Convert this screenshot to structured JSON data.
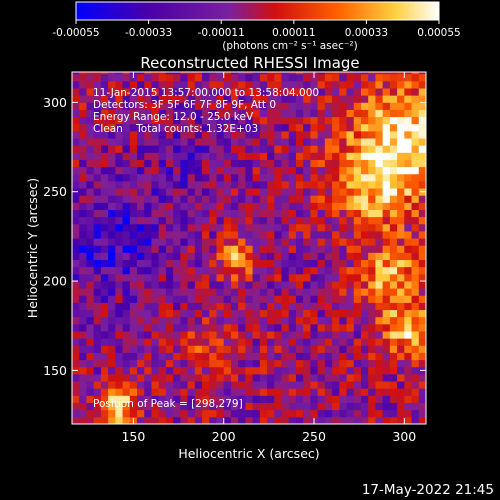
{
  "colorbar": {
    "ticks": [
      "-0.00055",
      "-0.00033",
      "-0.00011",
      "0.00011",
      "0.00033",
      "0.00055"
    ],
    "unit_label": "(photons cm⁻² s⁻¹ asec⁻²)"
  },
  "chart_data": {
    "type": "heatmap",
    "title": "Reconstructed RHESSI Image",
    "xlabel": "Heliocentric X (arcsec)",
    "ylabel": "Heliocentric Y (arcsec)",
    "xlim": [
      116,
      312
    ],
    "ylim": [
      120,
      317
    ],
    "x_ticks": [
      150,
      200,
      250,
      300
    ],
    "y_ticks": [
      150,
      200,
      250,
      300
    ],
    "color_range": [
      -0.00055,
      0.00055
    ],
    "colormap_stops": [
      "#0000ff",
      "#4a00a8",
      "#7a20a0",
      "#d01010",
      "#ff6000",
      "#ffd040",
      "#ffffff"
    ],
    "annotations": [
      "11-Jan-2015 13:57:00.000 to 13:58:04.000",
      "Detectors: 3F 5F 6F 7F 8F 9F, Att 0",
      "Energy Range: 12.0 - 25.0 keV",
      "Clean    Total counts: 1.32E+03"
    ],
    "peak_label": "Position of Peak = [298,279]",
    "peak_position": [
      298,
      279
    ]
  },
  "timestamp": "17-May-2022 21:45"
}
